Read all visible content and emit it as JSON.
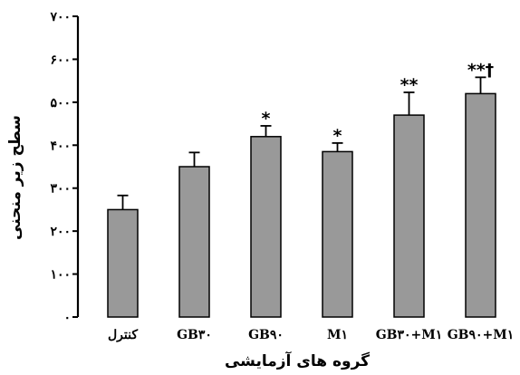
{
  "chart_data": {
    "type": "bar",
    "categories": [
      "کنترل",
      "GB۳۰",
      "GB۹۰",
      "M۱",
      "GB۳۰+M۱",
      "GB۹۰+M۱"
    ],
    "values": [
      250,
      350,
      420,
      385,
      470,
      520
    ],
    "errors": [
      33,
      33,
      25,
      20,
      53,
      38
    ],
    "annotations": [
      "",
      "",
      "*",
      "*",
      "**",
      "**†"
    ],
    "yticks": [
      0,
      100,
      200,
      300,
      400,
      500,
      600,
      700
    ],
    "ytick_labels": [
      "۰",
      "۱۰۰",
      "۲۰۰",
      "۳۰۰",
      "۴۰۰",
      "۵۰۰",
      "۶۰۰",
      "۷۰۰"
    ],
    "ylim": [
      0,
      700
    ],
    "xlabel": "گروه های آزمایشی",
    "ylabel": "سطح زیر منحنی",
    "bar_color": "#999999",
    "legend": "none",
    "grid": false
  }
}
